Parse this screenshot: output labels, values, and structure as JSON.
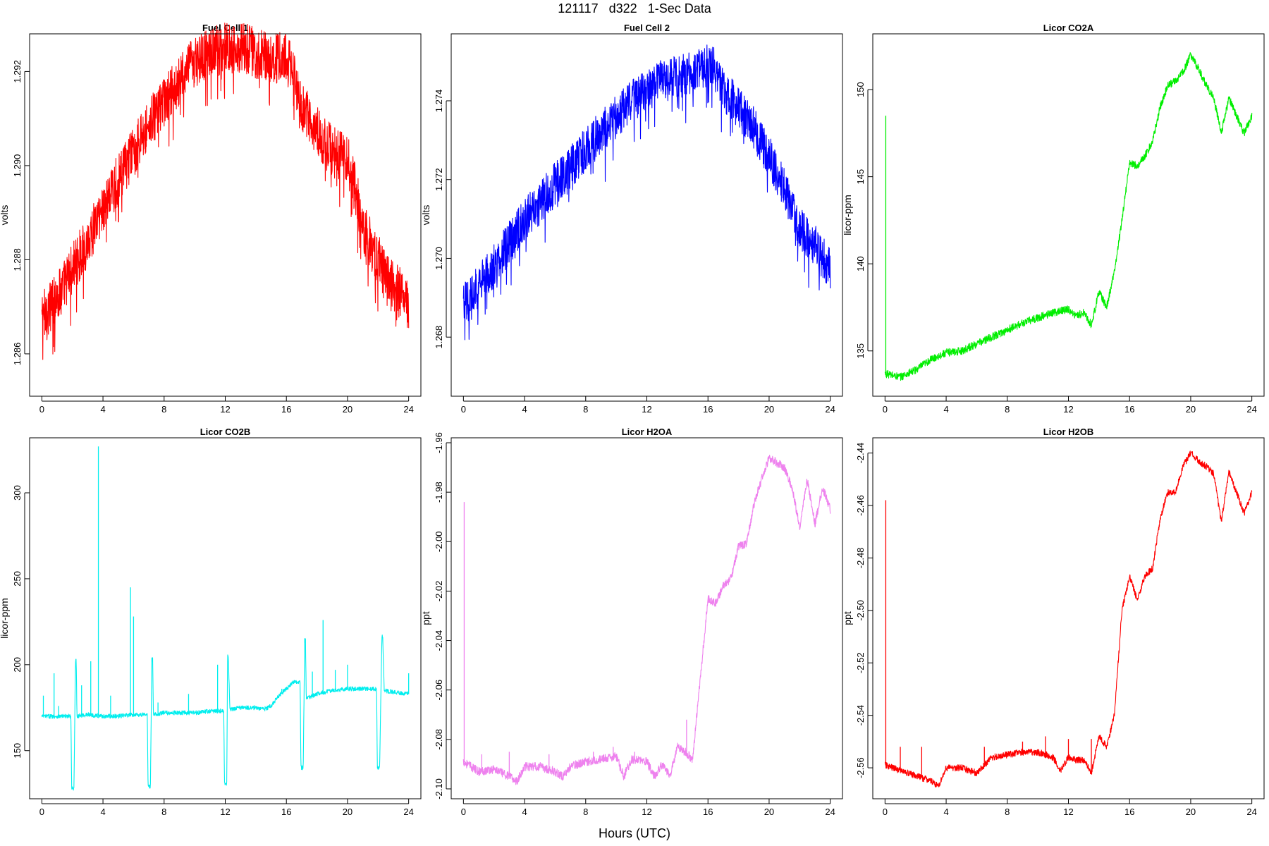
{
  "figure": {
    "title": "121117   d322   1-Sec Data",
    "xlabel": "Hours (UTC)"
  },
  "chart_data": [
    {
      "type": "line",
      "title": "Fuel Cell 1",
      "ylabel": "volts",
      "color": "#ff0000",
      "xlim": [
        -0.8,
        24.8
      ],
      "ylim": [
        1.2851,
        1.2928
      ],
      "xticks": [
        0,
        4,
        8,
        12,
        16,
        20,
        24
      ],
      "yticks": [
        1.286,
        1.288,
        1.29,
        1.292
      ],
      "band": 0.0011,
      "dip": 0.0009,
      "series": [
        {
          "x": [
            0,
            1,
            2,
            3,
            4,
            5,
            6,
            7,
            8,
            9,
            10,
            11,
            12,
            13,
            14,
            15,
            16,
            16.5,
            17,
            18,
            19,
            20,
            20.5,
            21,
            22,
            22.5,
            23,
            23.5,
            24
          ],
          "y": [
            1.2868,
            1.2872,
            1.2878,
            1.2884,
            1.2891,
            1.2897,
            1.2903,
            1.2909,
            1.2913,
            1.2918,
            1.2922,
            1.2924,
            1.2925,
            1.2925,
            1.2924,
            1.2923,
            1.2923,
            1.2919,
            1.2913,
            1.2907,
            1.2903,
            1.2901,
            1.2895,
            1.2887,
            1.288,
            1.2876,
            1.2874,
            1.2873,
            1.287
          ]
        }
      ]
    },
    {
      "type": "line",
      "title": "Fuel Cell 2",
      "ylabel": "volts",
      "color": "#0000ff",
      "xlim": [
        -0.8,
        24.8
      ],
      "ylim": [
        1.2665,
        1.2757
      ],
      "xticks": [
        0,
        4,
        8,
        12,
        16,
        20,
        24
      ],
      "yticks": [
        1.268,
        1.27,
        1.272,
        1.274
      ],
      "band": 0.0011,
      "dip": 0.0009,
      "series": [
        {
          "x": [
            0,
            1,
            2,
            3,
            4,
            5,
            6,
            7,
            8,
            9,
            10,
            11,
            12,
            13,
            14,
            15,
            16,
            16.5,
            17,
            18,
            19,
            20,
            21,
            22,
            22.5,
            23,
            23.5,
            24
          ],
          "y": [
            1.2688,
            1.2693,
            1.2698,
            1.2704,
            1.271,
            1.2714,
            1.2719,
            1.2723,
            1.2728,
            1.2732,
            1.2736,
            1.274,
            1.2743,
            1.2745,
            1.2746,
            1.2747,
            1.2749,
            1.2748,
            1.2743,
            1.2738,
            1.2733,
            1.2726,
            1.2718,
            1.2708,
            1.2705,
            1.2703,
            1.27,
            1.2697
          ]
        }
      ]
    },
    {
      "type": "line",
      "title": "Licor CO2A",
      "ylabel": "licor-ppm",
      "color": "#00ee00",
      "xlim": [
        -0.8,
        24.8
      ],
      "ylim": [
        132.4,
        153.2
      ],
      "xticks": [
        0,
        4,
        8,
        12,
        16,
        20,
        24
      ],
      "yticks": [
        135,
        140,
        145,
        150
      ],
      "band": 0.45,
      "spikes": [
        {
          "x": 0.05,
          "y": 148.5
        }
      ],
      "series": [
        {
          "x": [
            0,
            1,
            2,
            3,
            4,
            5,
            6,
            7,
            8,
            9,
            10,
            11,
            12,
            12.5,
            13,
            13.5,
            14,
            14.5,
            15,
            15.5,
            16,
            16.5,
            17,
            17.5,
            18,
            18.5,
            19,
            19.5,
            20,
            20.5,
            21,
            21.5,
            22,
            22.5,
            23,
            23.5,
            24
          ],
          "y": [
            133.7,
            133.5,
            133.9,
            134.5,
            134.9,
            135.0,
            135.4,
            135.8,
            136.2,
            136.6,
            136.9,
            137.2,
            137.4,
            137.0,
            137.2,
            136.5,
            138.4,
            137.5,
            139.5,
            142.5,
            145.8,
            145.6,
            146.2,
            147.0,
            149.0,
            150.2,
            150.5,
            151.0,
            152.0,
            151.2,
            150.3,
            149.5,
            147.5,
            149.5,
            148.5,
            147.5,
            148.5
          ]
        }
      ]
    },
    {
      "type": "line",
      "title": "Licor CO2B",
      "ylabel": "licor-ppm",
      "color": "#00eeee",
      "xlim": [
        -0.8,
        24.8
      ],
      "ylim": [
        122,
        332
      ],
      "xticks": [
        0,
        4,
        8,
        12,
        16,
        20,
        24
      ],
      "yticks": [
        150,
        200,
        250,
        300
      ],
      "band": 2.5,
      "spikes": [
        {
          "x": 0.1,
          "y": 182
        },
        {
          "x": 0.8,
          "y": 195
        },
        {
          "x": 1.1,
          "y": 176
        },
        {
          "x": 2.6,
          "y": 188
        },
        {
          "x": 3.2,
          "y": 202
        },
        {
          "x": 3.7,
          "y": 327
        },
        {
          "x": 4.5,
          "y": 182
        },
        {
          "x": 5.8,
          "y": 245
        },
        {
          "x": 6.0,
          "y": 228
        },
        {
          "x": 7.6,
          "y": 178
        },
        {
          "x": 9.6,
          "y": 183
        },
        {
          "x": 11.5,
          "y": 200
        },
        {
          "x": 15.7,
          "y": 186
        },
        {
          "x": 17.7,
          "y": 196
        },
        {
          "x": 18.4,
          "y": 226
        },
        {
          "x": 19.2,
          "y": 197
        },
        {
          "x": 20.0,
          "y": 200
        },
        {
          "x": 24.0,
          "y": 195
        }
      ],
      "series": [
        {
          "x": [
            0,
            0.5,
            1,
            1.9,
            1.95,
            2.05,
            2.1,
            2.2,
            2.25,
            2.3,
            3,
            4,
            5,
            6,
            6.9,
            6.95,
            7.05,
            7.1,
            7.2,
            7.25,
            7.3,
            8,
            9,
            10,
            11,
            11.9,
            11.95,
            12.05,
            12.1,
            12.15,
            12.2,
            12.3,
            13,
            14,
            14.5,
            15,
            15.5,
            16,
            16.5,
            16.9,
            16.95,
            17.05,
            17.1,
            17.2,
            17.25,
            17.3,
            18,
            19,
            20,
            21,
            21.9,
            21.95,
            22.05,
            22.1,
            22.25,
            22.3,
            22.4,
            23,
            24
          ],
          "y": [
            170,
            170,
            170,
            170,
            128,
            128,
            128,
            202,
            202,
            170,
            171,
            170,
            170,
            171,
            171,
            129,
            129,
            129,
            203,
            203,
            171,
            172,
            172,
            172,
            173,
            173,
            131,
            131,
            131,
            205,
            205,
            174,
            175,
            175,
            174,
            176,
            182,
            186,
            190,
            190,
            140,
            140,
            140,
            214,
            214,
            180,
            183,
            185,
            186,
            186,
            186,
            140,
            140,
            140,
            217,
            217,
            185,
            184,
            183
          ]
        }
      ]
    },
    {
      "type": "line",
      "title": "Licor H2OA",
      "ylabel": "ppt",
      "color": "#ee82ee",
      "xlim": [
        -0.8,
        24.8
      ],
      "ylim": [
        -2.104,
        -1.958
      ],
      "xticks": [
        0,
        4,
        8,
        12,
        16,
        20,
        24
      ],
      "yticks": [
        -2.1,
        -2.08,
        -2.06,
        -2.04,
        -2.02,
        -2.0,
        -1.98,
        -1.96
      ],
      "band": 0.0035,
      "spikes": [
        {
          "x": 0.05,
          "y": -1.984
        },
        {
          "x": 1.2,
          "y": -2.086
        },
        {
          "x": 3.0,
          "y": -2.085
        },
        {
          "x": 5.6,
          "y": -2.086
        },
        {
          "x": 8.5,
          "y": -2.085
        },
        {
          "x": 9.8,
          "y": -2.083
        },
        {
          "x": 11.2,
          "y": -2.085
        },
        {
          "x": 14.6,
          "y": -2.072
        }
      ],
      "series": [
        {
          "x": [
            0,
            1,
            2,
            3,
            3.5,
            4,
            5,
            6,
            6.5,
            7,
            8,
            9,
            10,
            10.5,
            11,
            12,
            12.5,
            13,
            13.5,
            14,
            14.5,
            15,
            15.5,
            16,
            16.5,
            17,
            17.5,
            18,
            18.5,
            19,
            19.5,
            20,
            20.5,
            21,
            21.5,
            22,
            22.5,
            23,
            23.5,
            24
          ],
          "y": [
            -2.089,
            -2.093,
            -2.092,
            -2.095,
            -2.097,
            -2.091,
            -2.091,
            -2.093,
            -2.095,
            -2.091,
            -2.089,
            -2.088,
            -2.087,
            -2.095,
            -2.088,
            -2.089,
            -2.095,
            -2.09,
            -2.095,
            -2.083,
            -2.085,
            -2.088,
            -2.055,
            -2.023,
            -2.025,
            -2.018,
            -2.015,
            -2.002,
            -2.001,
            -1.985,
            -1.975,
            -1.966,
            -1.968,
            -1.97,
            -1.978,
            -1.994,
            -1.975,
            -1.993,
            -1.978,
            -1.987
          ]
        }
      ]
    },
    {
      "type": "line",
      "title": "Licor H2OB",
      "ylabel": "ppt",
      "color": "#ff0000",
      "xlim": [
        -0.8,
        24.8
      ],
      "ylim": [
        -2.5718,
        -2.4342
      ],
      "xticks": [
        0,
        4,
        8,
        12,
        16,
        20,
        24
      ],
      "yticks": [
        -2.56,
        -2.54,
        -2.52,
        -2.5,
        -2.48,
        -2.46,
        -2.44
      ],
      "band": 0.0025,
      "spikes": [
        {
          "x": 0.05,
          "y": -2.458
        },
        {
          "x": 1.0,
          "y": -2.552
        },
        {
          "x": 2.4,
          "y": -2.552
        },
        {
          "x": 6.5,
          "y": -2.552
        },
        {
          "x": 9.0,
          "y": -2.55
        },
        {
          "x": 10.5,
          "y": -2.548
        },
        {
          "x": 12.0,
          "y": -2.549
        },
        {
          "x": 13.5,
          "y": -2.549
        }
      ],
      "series": [
        {
          "x": [
            0,
            1,
            2,
            3,
            3.5,
            4,
            5,
            6,
            6.5,
            7,
            8,
            9,
            10,
            11,
            11.5,
            12,
            12.5,
            13,
            13.5,
            14,
            14.5,
            15,
            15.5,
            16,
            16.5,
            17,
            17.5,
            18,
            18.5,
            19,
            19.5,
            20,
            20.5,
            21,
            21.5,
            22,
            22.5,
            23,
            23.5,
            24
          ],
          "y": [
            -2.559,
            -2.561,
            -2.563,
            -2.565,
            -2.567,
            -2.56,
            -2.56,
            -2.562,
            -2.559,
            -2.556,
            -2.555,
            -2.554,
            -2.554,
            -2.556,
            -2.561,
            -2.556,
            -2.557,
            -2.557,
            -2.562,
            -2.548,
            -2.552,
            -2.54,
            -2.5,
            -2.487,
            -2.496,
            -2.487,
            -2.484,
            -2.465,
            -2.455,
            -2.455,
            -2.445,
            -2.44,
            -2.443,
            -2.445,
            -2.448,
            -2.466,
            -2.447,
            -2.455,
            -2.463,
            -2.455
          ]
        }
      ]
    }
  ]
}
